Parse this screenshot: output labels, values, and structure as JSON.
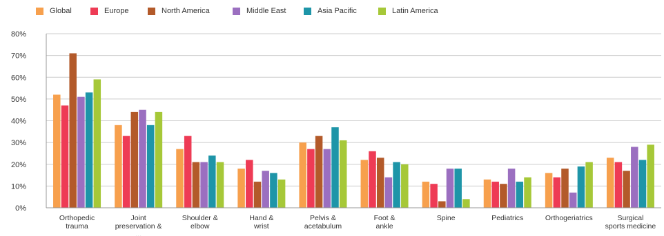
{
  "chart_data": {
    "type": "bar",
    "categories": [
      [
        "Orthopedic",
        "trauma"
      ],
      [
        "Joint",
        "preservation &",
        "..."
      ],
      [
        "Shoulder &",
        "elbow"
      ],
      [
        "Hand &",
        "wrist"
      ],
      [
        "Pelvis &",
        "acetabulum"
      ],
      [
        "Foot &",
        "ankle"
      ],
      [
        "Spine"
      ],
      [
        "Pediatrics"
      ],
      [
        "Orthogeriatrics"
      ],
      [
        "Surgical",
        "sports medicine"
      ]
    ],
    "series": [
      {
        "name": "Global",
        "color": "#F7A04D",
        "values": [
          52,
          38,
          27,
          18,
          30,
          22,
          12,
          13,
          16,
          23
        ]
      },
      {
        "name": "Europe",
        "color": "#EE3B55",
        "values": [
          47,
          33,
          33,
          22,
          27,
          26,
          11,
          12,
          14,
          21
        ]
      },
      {
        "name": "North America",
        "color": "#B35A2A",
        "values": [
          71,
          44,
          21,
          12,
          33,
          23,
          3,
          11,
          18,
          17
        ]
      },
      {
        "name": "Middle East",
        "color": "#9B6FC0",
        "values": [
          51,
          45,
          21,
          17,
          27,
          14,
          18,
          18,
          7,
          28
        ]
      },
      {
        "name": "Asia Pacific",
        "color": "#1E95A8",
        "values": [
          53,
          38,
          24,
          16,
          37,
          21,
          18,
          12,
          19,
          22
        ]
      },
      {
        "name": "Latin America",
        "color": "#A6C838",
        "values": [
          59,
          44,
          21,
          13,
          31,
          20,
          4,
          14,
          21,
          29
        ]
      }
    ],
    "y_ticks": [
      "0%",
      "10%",
      "20%",
      "30%",
      "40%",
      "50%",
      "60%",
      "70%",
      "80%"
    ],
    "ylim": [
      0,
      80
    ],
    "grid": true,
    "legend_position": "top-left"
  }
}
